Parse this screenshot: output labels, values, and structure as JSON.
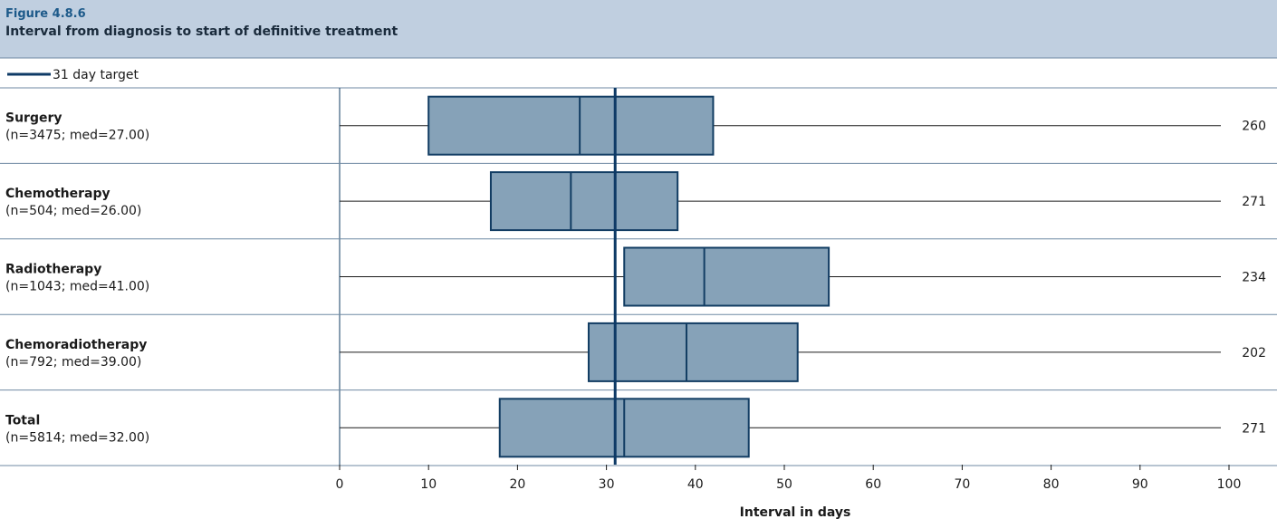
{
  "figure": {
    "label": "Figure 4.8.6",
    "title": "Interval from diagnosis to start of definitive treatment"
  },
  "legend": {
    "items": [
      {
        "label": "31 day target",
        "color": "#0e3a66"
      }
    ]
  },
  "colors": {
    "header_bg": "#c0cfe0",
    "box_fill": "#86a2b8",
    "box_stroke": "#123d63",
    "target_line": "#0e3a66",
    "divider": "#6f8aa3"
  },
  "chart_data": {
    "type": "boxplot",
    "orientation": "horizontal",
    "title": "Interval from diagnosis to start of definitive treatment",
    "xlabel": "Interval in days",
    "xlim": [
      0,
      100
    ],
    "xticks": [
      0,
      10,
      20,
      30,
      40,
      50,
      60,
      70,
      80,
      90,
      100
    ],
    "reference_line": {
      "label": "31 day target",
      "value": 31
    },
    "categories": [
      {
        "name": "Surgery",
        "stats_label": "(n=3475; med=27.00)",
        "n": 3475,
        "min": 0,
        "q1": 10,
        "median": 27,
        "q3": 42,
        "max": 260,
        "max_label": "260"
      },
      {
        "name": "Chemotherapy",
        "stats_label": "(n=504; med=26.00)",
        "n": 504,
        "min": 0,
        "q1": 17,
        "median": 26,
        "q3": 38,
        "max": 271,
        "max_label": "271"
      },
      {
        "name": "Radiotherapy",
        "stats_label": "(n=1043; med=41.00)",
        "n": 1043,
        "min": 0,
        "q1": 32,
        "median": 41,
        "q3": 55,
        "max": 234,
        "max_label": "234"
      },
      {
        "name": "Chemoradiotherapy",
        "stats_label": "(n=792; med=39.00)",
        "n": 792,
        "min": 0,
        "q1": 28,
        "median": 39,
        "q3": 51.5,
        "max": 202,
        "max_label": "202"
      },
      {
        "name": "Total",
        "stats_label": "(n=5814; med=32.00)",
        "n": 5814,
        "min": 0,
        "q1": 18,
        "median": 32,
        "q3": 46,
        "max": 271,
        "max_label": "271"
      }
    ]
  }
}
